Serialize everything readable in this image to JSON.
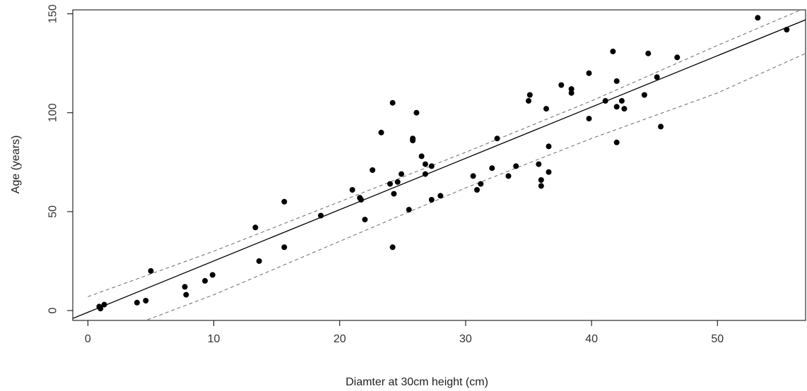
{
  "chart_data": {
    "type": "scatter",
    "title": "",
    "xlabel": "Diamter at 30cm height (cm)",
    "ylabel": "Age (years)",
    "xlim": [
      -1.2,
      57
    ],
    "ylim": [
      -5,
      152
    ],
    "xticks": [
      0,
      10,
      20,
      30,
      40,
      50
    ],
    "yticks": [
      0,
      50,
      100,
      150
    ],
    "grid": false,
    "legend": "none",
    "point_color": "#000000",
    "fit_line": {
      "x": [
        -1.2,
        57
      ],
      "y": [
        -4,
        147
      ]
    },
    "confidence_band": {
      "upper": {
        "x": [
          0,
          10,
          20,
          30,
          40,
          50,
          57
        ],
        "y": [
          7,
          30,
          55,
          80,
          106,
          134,
          153
        ]
      },
      "lower": {
        "x": [
          0,
          10,
          20,
          30,
          40,
          50,
          57
        ],
        "y": [
          -16,
          8,
          35,
          62,
          87,
          110,
          130
        ]
      }
    },
    "points": {
      "x": [
        0.9,
        1.0,
        1.3,
        3.9,
        4.6,
        5.0,
        7.7,
        7.8,
        9.3,
        9.9,
        13.3,
        13.6,
        15.6,
        15.6,
        18.5,
        21.0,
        21.6,
        21.7,
        22.0,
        22.6,
        23.3,
        24.0,
        24.2,
        24.3,
        24.2,
        24.6,
        24.9,
        25.5,
        25.8,
        25.8,
        26.1,
        26.5,
        26.8,
        26.8,
        27.3,
        27.3,
        28.0,
        30.6,
        30.9,
        31.2,
        32.1,
        32.5,
        33.4,
        34.0,
        35.0,
        35.1,
        35.8,
        36.0,
        36.0,
        36.4,
        36.6,
        36.6,
        37.6,
        38.4,
        38.4,
        39.8,
        39.8,
        41.1,
        41.7,
        42.0,
        42.0,
        42.0,
        42.4,
        42.6,
        44.2,
        44.5,
        45.2,
        45.5,
        46.8,
        53.2,
        55.5
      ],
      "y": [
        2,
        1,
        3,
        4,
        5,
        20,
        12,
        8,
        15,
        18,
        42,
        25,
        55,
        32,
        48,
        61,
        57,
        56,
        46,
        71,
        90,
        64,
        105,
        59,
        32,
        65,
        69,
        51,
        86,
        87,
        100,
        78,
        74,
        69,
        73,
        56,
        58,
        68,
        61,
        64,
        72,
        87,
        68,
        73,
        106,
        109,
        74,
        66,
        63,
        102,
        83,
        70,
        114,
        110,
        112,
        120,
        97,
        106,
        131,
        116,
        103,
        85,
        106,
        102,
        109,
        130,
        118,
        93,
        128,
        148,
        142
      ]
    }
  }
}
